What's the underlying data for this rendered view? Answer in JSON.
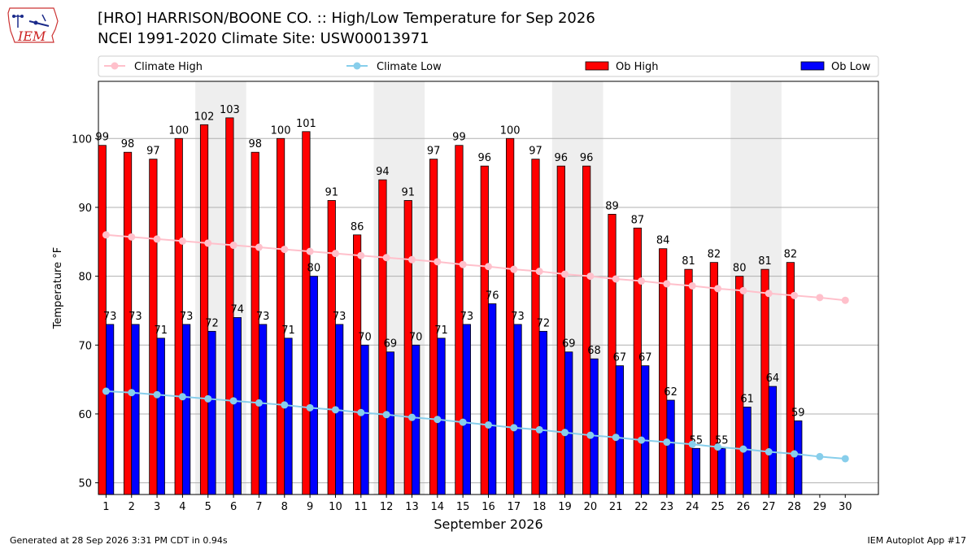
{
  "header": {
    "title": "[HRO] HARRISON/BOONE CO. :: High/Low Temperature for Sep 2026",
    "subtitle": "NCEI 1991-2020 Climate Site: USW00013971"
  },
  "logo": {
    "text": "IEM",
    "icon": "iowa-state-weather-logo-icon"
  },
  "footer": {
    "left": "Generated at 28 Sep 2026 3:31 PM CDT in 0.94s",
    "right": "IEM Autoplot App #17"
  },
  "chart_data": {
    "type": "bar",
    "xlabel": "September 2026",
    "ylabel": "Temperature °F",
    "ylim": [
      48.3,
      108.3
    ],
    "yticks": [
      50,
      60,
      70,
      80,
      90,
      100
    ],
    "grid": true,
    "legend_placement": "top",
    "categories": [
      "1",
      "2",
      "3",
      "4",
      "5",
      "6",
      "7",
      "8",
      "9",
      "10",
      "11",
      "12",
      "13",
      "14",
      "15",
      "16",
      "17",
      "18",
      "19",
      "20",
      "21",
      "22",
      "23",
      "24",
      "25",
      "26",
      "27",
      "28",
      "29",
      "30"
    ],
    "weekend_shading": [
      [
        5,
        6
      ],
      [
        12,
        13
      ],
      [
        19,
        20
      ],
      [
        26,
        27
      ]
    ],
    "series": [
      {
        "name": "Climate High",
        "kind": "line",
        "color": "#ffc0cb",
        "values": [
          86.0,
          85.7,
          85.4,
          85.1,
          84.8,
          84.5,
          84.2,
          83.9,
          83.6,
          83.3,
          83.0,
          82.7,
          82.4,
          82.1,
          81.7,
          81.4,
          81.0,
          80.7,
          80.3,
          80.0,
          79.6,
          79.3,
          78.9,
          78.6,
          78.2,
          77.9,
          77.5,
          77.2,
          76.9,
          76.5
        ]
      },
      {
        "name": "Climate Low",
        "kind": "line",
        "color": "#87ceeb",
        "values": [
          63.3,
          63.1,
          62.8,
          62.5,
          62.2,
          61.9,
          61.6,
          61.3,
          60.9,
          60.6,
          60.2,
          59.9,
          59.5,
          59.2,
          58.8,
          58.4,
          58.0,
          57.7,
          57.3,
          56.9,
          56.6,
          56.2,
          55.9,
          55.6,
          55.2,
          54.9,
          54.5,
          54.2,
          53.8,
          53.5
        ]
      },
      {
        "name": "Ob High",
        "kind": "bar",
        "color": "#ff0000",
        "values": [
          99,
          98,
          97,
          100,
          102,
          103,
          98,
          100,
          101,
          91,
          86,
          94,
          91,
          97,
          99,
          96,
          100,
          97,
          96,
          96,
          89,
          87,
          84,
          81,
          82,
          80,
          81,
          82,
          null,
          null
        ]
      },
      {
        "name": "Ob Low",
        "kind": "bar",
        "color": "#0000ff",
        "values": [
          73,
          73,
          71,
          73,
          72,
          74,
          73,
          71,
          80,
          73,
          70,
          69,
          70,
          71,
          73,
          76,
          73,
          72,
          69,
          68,
          67,
          67,
          62,
          55,
          55,
          61,
          64,
          59,
          null,
          null
        ]
      }
    ]
  }
}
